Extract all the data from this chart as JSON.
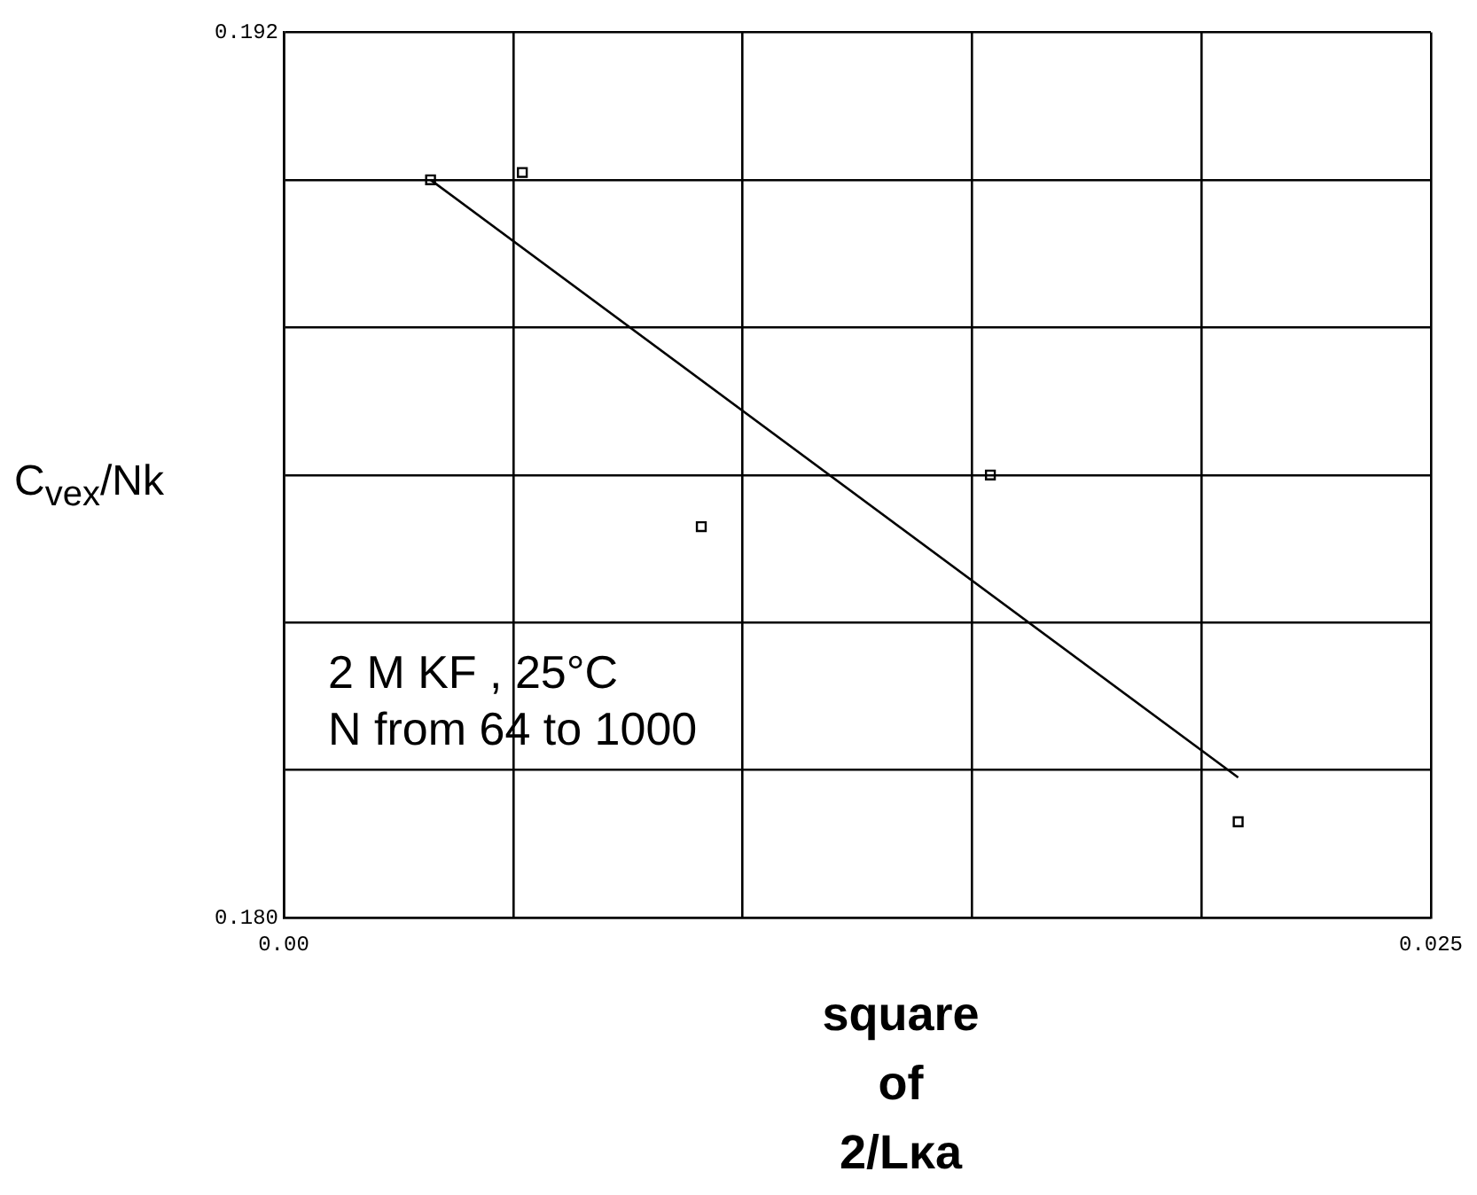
{
  "chart_data": {
    "type": "scatter",
    "xlabel": "square\nof\n2/Lκa",
    "ylabel": "C$_{vex}$/Nk",
    "xlim": [
      0,
      0.025
    ],
    "ylim": [
      0.18,
      0.192
    ],
    "xticks": [
      {
        "value": 0,
        "label": "0.00"
      },
      {
        "value": 0.005,
        "label": null
      },
      {
        "value": 0.01,
        "label": null
      },
      {
        "value": 0.015,
        "label": null
      },
      {
        "value": 0.02,
        "label": null
      },
      0.025
    ],
    "yticks": [
      {
        "value": 0.18,
        "label": "0.180"
      },
      {
        "value": 0.182,
        "label": null
      },
      {
        "value": 0.184,
        "label": null
      },
      {
        "value": 0.186,
        "label": null
      },
      {
        "value": 0.188,
        "label": null
      },
      {
        "value": 0.19,
        "label": null
      },
      0.192
    ],
    "grid": true,
    "annotations": [
      "2 M KF , 25°C\nN from 64 to 1000"
    ],
    "series": [
      {
        "type": "scatter",
        "marker": "square",
        "color": "#000000",
        "x": [
          0.0032,
          0.0052,
          0.0091,
          0.0154,
          0.0208
        ],
        "values": [
          0.19,
          0.1901,
          0.1853,
          0.186,
          0.1813
        ]
      },
      {
        "type": "line",
        "marker": "none",
        "color": "#000000",
        "x": [
          0.0032,
          0.0208
        ],
        "values": [
          0.19,
          0.1819
        ]
      }
    ]
  }
}
